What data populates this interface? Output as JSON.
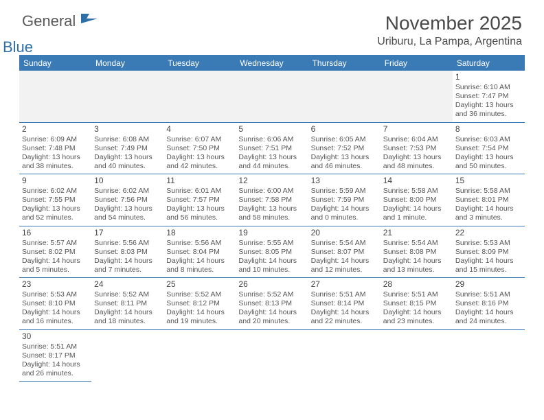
{
  "logo": {
    "text1": "General",
    "text2": "Blue"
  },
  "title": "November 2025",
  "location": "Uriburu, La Pampa, Argentina",
  "colors": {
    "header_bg": "#3a7ab5",
    "header_text": "#ffffff",
    "border": "#3a7ab5",
    "empty_bg": "#f2f2f2",
    "text": "#555555"
  },
  "day_headers": [
    "Sunday",
    "Monday",
    "Tuesday",
    "Wednesday",
    "Thursday",
    "Friday",
    "Saturday"
  ],
  "weeks": [
    [
      {
        "empty": true
      },
      {
        "empty": true
      },
      {
        "empty": true
      },
      {
        "empty": true
      },
      {
        "empty": true
      },
      {
        "empty": true
      },
      {
        "n": "1",
        "sr": "Sunrise: 6:10 AM",
        "ss": "Sunset: 7:47 PM",
        "dl": "Daylight: 13 hours and 36 minutes."
      }
    ],
    [
      {
        "n": "2",
        "sr": "Sunrise: 6:09 AM",
        "ss": "Sunset: 7:48 PM",
        "dl": "Daylight: 13 hours and 38 minutes."
      },
      {
        "n": "3",
        "sr": "Sunrise: 6:08 AM",
        "ss": "Sunset: 7:49 PM",
        "dl": "Daylight: 13 hours and 40 minutes."
      },
      {
        "n": "4",
        "sr": "Sunrise: 6:07 AM",
        "ss": "Sunset: 7:50 PM",
        "dl": "Daylight: 13 hours and 42 minutes."
      },
      {
        "n": "5",
        "sr": "Sunrise: 6:06 AM",
        "ss": "Sunset: 7:51 PM",
        "dl": "Daylight: 13 hours and 44 minutes."
      },
      {
        "n": "6",
        "sr": "Sunrise: 6:05 AM",
        "ss": "Sunset: 7:52 PM",
        "dl": "Daylight: 13 hours and 46 minutes."
      },
      {
        "n": "7",
        "sr": "Sunrise: 6:04 AM",
        "ss": "Sunset: 7:53 PM",
        "dl": "Daylight: 13 hours and 48 minutes."
      },
      {
        "n": "8",
        "sr": "Sunrise: 6:03 AM",
        "ss": "Sunset: 7:54 PM",
        "dl": "Daylight: 13 hours and 50 minutes."
      }
    ],
    [
      {
        "n": "9",
        "sr": "Sunrise: 6:02 AM",
        "ss": "Sunset: 7:55 PM",
        "dl": "Daylight: 13 hours and 52 minutes."
      },
      {
        "n": "10",
        "sr": "Sunrise: 6:02 AM",
        "ss": "Sunset: 7:56 PM",
        "dl": "Daylight: 13 hours and 54 minutes."
      },
      {
        "n": "11",
        "sr": "Sunrise: 6:01 AM",
        "ss": "Sunset: 7:57 PM",
        "dl": "Daylight: 13 hours and 56 minutes."
      },
      {
        "n": "12",
        "sr": "Sunrise: 6:00 AM",
        "ss": "Sunset: 7:58 PM",
        "dl": "Daylight: 13 hours and 58 minutes."
      },
      {
        "n": "13",
        "sr": "Sunrise: 5:59 AM",
        "ss": "Sunset: 7:59 PM",
        "dl": "Daylight: 14 hours and 0 minutes."
      },
      {
        "n": "14",
        "sr": "Sunrise: 5:58 AM",
        "ss": "Sunset: 8:00 PM",
        "dl": "Daylight: 14 hours and 1 minute."
      },
      {
        "n": "15",
        "sr": "Sunrise: 5:58 AM",
        "ss": "Sunset: 8:01 PM",
        "dl": "Daylight: 14 hours and 3 minutes."
      }
    ],
    [
      {
        "n": "16",
        "sr": "Sunrise: 5:57 AM",
        "ss": "Sunset: 8:02 PM",
        "dl": "Daylight: 14 hours and 5 minutes."
      },
      {
        "n": "17",
        "sr": "Sunrise: 5:56 AM",
        "ss": "Sunset: 8:03 PM",
        "dl": "Daylight: 14 hours and 7 minutes."
      },
      {
        "n": "18",
        "sr": "Sunrise: 5:56 AM",
        "ss": "Sunset: 8:04 PM",
        "dl": "Daylight: 14 hours and 8 minutes."
      },
      {
        "n": "19",
        "sr": "Sunrise: 5:55 AM",
        "ss": "Sunset: 8:05 PM",
        "dl": "Daylight: 14 hours and 10 minutes."
      },
      {
        "n": "20",
        "sr": "Sunrise: 5:54 AM",
        "ss": "Sunset: 8:07 PM",
        "dl": "Daylight: 14 hours and 12 minutes."
      },
      {
        "n": "21",
        "sr": "Sunrise: 5:54 AM",
        "ss": "Sunset: 8:08 PM",
        "dl": "Daylight: 14 hours and 13 minutes."
      },
      {
        "n": "22",
        "sr": "Sunrise: 5:53 AM",
        "ss": "Sunset: 8:09 PM",
        "dl": "Daylight: 14 hours and 15 minutes."
      }
    ],
    [
      {
        "n": "23",
        "sr": "Sunrise: 5:53 AM",
        "ss": "Sunset: 8:10 PM",
        "dl": "Daylight: 14 hours and 16 minutes."
      },
      {
        "n": "24",
        "sr": "Sunrise: 5:52 AM",
        "ss": "Sunset: 8:11 PM",
        "dl": "Daylight: 14 hours and 18 minutes."
      },
      {
        "n": "25",
        "sr": "Sunrise: 5:52 AM",
        "ss": "Sunset: 8:12 PM",
        "dl": "Daylight: 14 hours and 19 minutes."
      },
      {
        "n": "26",
        "sr": "Sunrise: 5:52 AM",
        "ss": "Sunset: 8:13 PM",
        "dl": "Daylight: 14 hours and 20 minutes."
      },
      {
        "n": "27",
        "sr": "Sunrise: 5:51 AM",
        "ss": "Sunset: 8:14 PM",
        "dl": "Daylight: 14 hours and 22 minutes."
      },
      {
        "n": "28",
        "sr": "Sunrise: 5:51 AM",
        "ss": "Sunset: 8:15 PM",
        "dl": "Daylight: 14 hours and 23 minutes."
      },
      {
        "n": "29",
        "sr": "Sunrise: 5:51 AM",
        "ss": "Sunset: 8:16 PM",
        "dl": "Daylight: 14 hours and 24 minutes."
      }
    ],
    [
      {
        "n": "30",
        "sr": "Sunrise: 5:51 AM",
        "ss": "Sunset: 8:17 PM",
        "dl": "Daylight: 14 hours and 26 minutes."
      },
      {
        "empty": true,
        "noborder": true
      },
      {
        "empty": true,
        "noborder": true
      },
      {
        "empty": true,
        "noborder": true
      },
      {
        "empty": true,
        "noborder": true
      },
      {
        "empty": true,
        "noborder": true
      },
      {
        "empty": true,
        "noborder": true
      }
    ]
  ]
}
